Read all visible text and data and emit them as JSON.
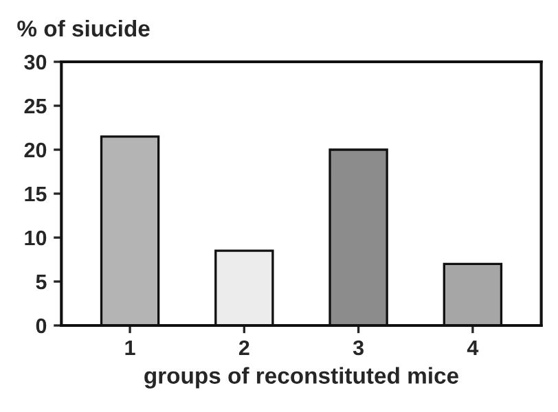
{
  "chart_data": {
    "type": "bar",
    "ylabel": "% of siucide",
    "xlabel": "groups of reconstituted mice",
    "categories": [
      "1",
      "2",
      "3",
      "4"
    ],
    "values": [
      21.5,
      8.5,
      20,
      7
    ],
    "colors": [
      "#b4b4b4",
      "#ececec",
      "#8c8c8c",
      "#a6a6a6"
    ],
    "ylim": [
      0,
      30
    ],
    "yticks": [
      0,
      5,
      10,
      15,
      20,
      25,
      30
    ],
    "grid": false,
    "legend": false
  }
}
